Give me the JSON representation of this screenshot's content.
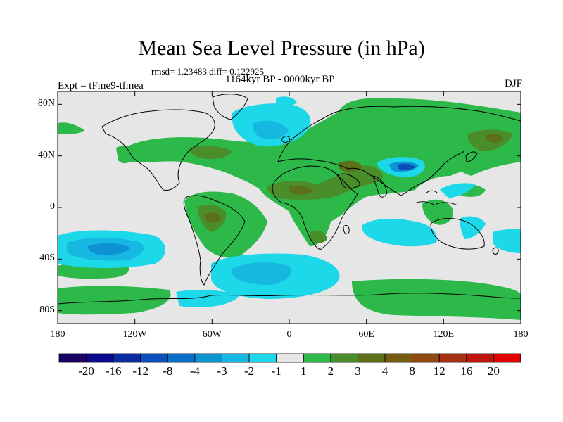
{
  "title": "Mean Sea Level Pressure (in hPa)",
  "stats": "rmsd= 1.23483 diff= 0.122925",
  "period": "1164kyr BP - 0000kyr BP",
  "experiment": "Expt = tFme9-tfmea",
  "season": "DJF",
  "y_ticks": [
    {
      "label": "80N",
      "lat": 80
    },
    {
      "label": "40N",
      "lat": 40
    },
    {
      "label": "0",
      "lat": 0
    },
    {
      "label": "40S",
      "lat": -40
    },
    {
      "label": "80S",
      "lat": -80
    }
  ],
  "x_ticks": [
    {
      "label": "180",
      "lon": -180
    },
    {
      "label": "120W",
      "lon": -120
    },
    {
      "label": "60W",
      "lon": -60
    },
    {
      "label": "0",
      "lon": 0
    },
    {
      "label": "60E",
      "lon": 60
    },
    {
      "label": "120E",
      "lon": 120
    },
    {
      "label": "180",
      "lon": 180
    }
  ],
  "colorbar": {
    "colors": [
      "#1a0066",
      "#0a0a8c",
      "#0b2aa6",
      "#0c4ebb",
      "#0a6ec8",
      "#0b93d4",
      "#16b7e1",
      "#1dd8e8",
      "#e6e6e6",
      "#2db84a",
      "#4a8e2b",
      "#5b7018",
      "#775b13",
      "#8f4a12",
      "#a63012",
      "#c01410",
      "#e00000"
    ],
    "labels": [
      "-20",
      "-16",
      "-12",
      "-8",
      "-4",
      "-3",
      "-2",
      "-1",
      "1",
      "2",
      "3",
      "4",
      "8",
      "12",
      "16",
      "20"
    ]
  },
  "map_colors": {
    "background": "#e6e6e6",
    "positive_1": "#2db84a",
    "positive_2": "#4a8e2b",
    "positive_3": "#5b7018",
    "negative_1": "#1dd8e8",
    "negative_2": "#16b7e1",
    "negative_3": "#0b93d4",
    "negative_4": "#0a6ec8",
    "negative_5": "#0c4ebb"
  }
}
